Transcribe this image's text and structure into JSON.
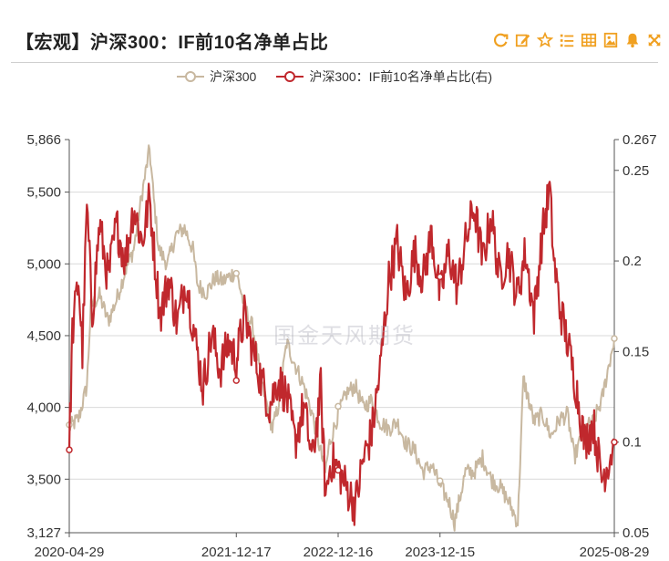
{
  "header": {
    "title": "【宏观】沪深300：IF前10名净单占比"
  },
  "toolbar": {
    "icons": [
      "refresh-icon",
      "edit-icon",
      "star-icon",
      "list-icon",
      "table-icon",
      "image-icon",
      "bell-icon",
      "expand-icon"
    ],
    "accent_color": "#f0a020"
  },
  "watermark": "国金天风期货",
  "chart_data": {
    "type": "line",
    "legend_position": "top-center",
    "grid": true,
    "x_start": "2020-04-29",
    "x_end": "2025-08-29",
    "x_ticks": [
      "2020-04-29",
      "2021-12-17",
      "2022-12-16",
      "2023-12-15",
      "2025-08-29"
    ],
    "y_left": {
      "min": 3127,
      "max": 5866,
      "ticks": [
        3127,
        3500,
        4000,
        4500,
        5000,
        5500,
        5866
      ],
      "tick_labels": [
        "3,127",
        "3,500",
        "4,000",
        "4,500",
        "5,000",
        "5,500",
        "5,866"
      ]
    },
    "y_right": {
      "min": 0.05,
      "max": 0.267,
      "ticks": [
        0.05,
        0.1,
        0.15,
        0.2,
        0.25,
        0.267
      ],
      "tick_labels": [
        "0.05",
        "0.1",
        "0.15",
        "0.2",
        "0.25",
        "0.267"
      ]
    },
    "series": [
      {
        "name": "沪深300",
        "axis": "left",
        "color": "#c8b8a0",
        "points": [
          [
            "2020-04-29",
            3860
          ],
          [
            "2020-06-01",
            3920
          ],
          [
            "2020-07-01",
            4150
          ],
          [
            "2020-07-15",
            4700
          ],
          [
            "2020-08-15",
            4780
          ],
          [
            "2020-09-15",
            4600
          ],
          [
            "2020-10-15",
            4750
          ],
          [
            "2020-11-15",
            4950
          ],
          [
            "2020-12-15",
            5100
          ],
          [
            "2021-01-15",
            5500
          ],
          [
            "2021-02-10",
            5800
          ],
          [
            "2021-02-25",
            5450
          ],
          [
            "2021-03-15",
            5100
          ],
          [
            "2021-04-15",
            5000
          ],
          [
            "2021-05-15",
            5200
          ],
          [
            "2021-06-15",
            5250
          ],
          [
            "2021-07-15",
            5100
          ],
          [
            "2021-08-01",
            4850
          ],
          [
            "2021-09-01",
            4800
          ],
          [
            "2021-10-01",
            4900
          ],
          [
            "2021-11-01",
            4880
          ],
          [
            "2021-12-17",
            4950
          ],
          [
            "2022-01-15",
            4700
          ],
          [
            "2022-02-15",
            4550
          ],
          [
            "2022-03-15",
            4200
          ],
          [
            "2022-04-25",
            3850
          ],
          [
            "2022-05-15",
            4000
          ],
          [
            "2022-06-15",
            4450
          ],
          [
            "2022-07-15",
            4300
          ],
          [
            "2022-08-15",
            4150
          ],
          [
            "2022-09-15",
            3950
          ],
          [
            "2022-10-31",
            3550
          ],
          [
            "2022-11-15",
            3750
          ],
          [
            "2022-12-16",
            3950
          ],
          [
            "2023-01-15",
            4100
          ],
          [
            "2023-02-15",
            4150
          ],
          [
            "2023-03-15",
            4000
          ],
          [
            "2023-04-15",
            4050
          ],
          [
            "2023-05-15",
            3900
          ],
          [
            "2023-06-15",
            3850
          ],
          [
            "2023-07-15",
            3900
          ],
          [
            "2023-08-15",
            3750
          ],
          [
            "2023-09-15",
            3700
          ],
          [
            "2023-10-15",
            3550
          ],
          [
            "2023-11-15",
            3600
          ],
          [
            "2023-12-15",
            3450
          ],
          [
            "2024-01-15",
            3350
          ],
          [
            "2024-02-05",
            3200
          ],
          [
            "2024-03-15",
            3550
          ],
          [
            "2024-04-15",
            3550
          ],
          [
            "2024-05-15",
            3650
          ],
          [
            "2024-06-15",
            3500
          ],
          [
            "2024-07-15",
            3450
          ],
          [
            "2024-08-15",
            3350
          ],
          [
            "2024-09-18",
            3200
          ],
          [
            "2024-10-08",
            4200
          ],
          [
            "2024-11-15",
            3900
          ],
          [
            "2024-12-15",
            3950
          ],
          [
            "2025-01-15",
            3800
          ],
          [
            "2025-02-15",
            3920
          ],
          [
            "2025-03-15",
            3950
          ],
          [
            "2025-04-08",
            3650
          ],
          [
            "2025-05-15",
            3850
          ],
          [
            "2025-06-15",
            3900
          ],
          [
            "2025-07-15",
            4050
          ],
          [
            "2025-08-29",
            4480
          ]
        ]
      },
      {
        "name": "沪深300：IF前10名净单占比(右)",
        "axis": "right",
        "color": "#c0282d",
        "points": [
          [
            "2020-04-29",
            0.095
          ],
          [
            "2020-05-10",
            0.16
          ],
          [
            "2020-06-01",
            0.19
          ],
          [
            "2020-06-15",
            0.15
          ],
          [
            "2020-07-01",
            0.23
          ],
          [
            "2020-07-20",
            0.17
          ],
          [
            "2020-08-15",
            0.22
          ],
          [
            "2020-09-15",
            0.19
          ],
          [
            "2020-10-15",
            0.22
          ],
          [
            "2020-11-15",
            0.2
          ],
          [
            "2020-12-15",
            0.23
          ],
          [
            "2021-01-15",
            0.21
          ],
          [
            "2021-02-10",
            0.235
          ],
          [
            "2021-03-01",
            0.2
          ],
          [
            "2021-03-20",
            0.17
          ],
          [
            "2021-04-20",
            0.19
          ],
          [
            "2021-05-20",
            0.165
          ],
          [
            "2021-06-20",
            0.19
          ],
          [
            "2021-07-20",
            0.16
          ],
          [
            "2021-08-20",
            0.13
          ],
          [
            "2021-09-20",
            0.16
          ],
          [
            "2021-10-20",
            0.14
          ],
          [
            "2021-11-20",
            0.155
          ],
          [
            "2021-12-17",
            0.145
          ],
          [
            "2022-01-15",
            0.17
          ],
          [
            "2022-02-15",
            0.15
          ],
          [
            "2022-03-15",
            0.135
          ],
          [
            "2022-04-15",
            0.12
          ],
          [
            "2022-05-15",
            0.135
          ],
          [
            "2022-06-15",
            0.125
          ],
          [
            "2022-07-15",
            0.1
          ],
          [
            "2022-08-15",
            0.12
          ],
          [
            "2022-09-15",
            0.09
          ],
          [
            "2022-10-15",
            0.13
          ],
          [
            "2022-11-01",
            0.07
          ],
          [
            "2022-11-20",
            0.09
          ],
          [
            "2022-12-16",
            0.085
          ],
          [
            "2023-01-15",
            0.075
          ],
          [
            "2023-02-15",
            0.065
          ],
          [
            "2023-03-15",
            0.09
          ],
          [
            "2023-04-15",
            0.105
          ],
          [
            "2023-05-15",
            0.14
          ],
          [
            "2023-06-15",
            0.19
          ],
          [
            "2023-07-15",
            0.21
          ],
          [
            "2023-08-15",
            0.18
          ],
          [
            "2023-09-15",
            0.205
          ],
          [
            "2023-10-15",
            0.19
          ],
          [
            "2023-11-15",
            0.215
          ],
          [
            "2023-12-15",
            0.18
          ],
          [
            "2024-01-15",
            0.205
          ],
          [
            "2024-02-15",
            0.185
          ],
          [
            "2024-03-15",
            0.21
          ],
          [
            "2024-04-15",
            0.23
          ],
          [
            "2024-05-15",
            0.2
          ],
          [
            "2024-06-15",
            0.225
          ],
          [
            "2024-07-15",
            0.19
          ],
          [
            "2024-08-15",
            0.205
          ],
          [
            "2024-09-15",
            0.18
          ],
          [
            "2024-10-15",
            0.205
          ],
          [
            "2024-11-15",
            0.17
          ],
          [
            "2024-12-15",
            0.215
          ],
          [
            "2025-01-10",
            0.24
          ],
          [
            "2025-01-25",
            0.2
          ],
          [
            "2025-02-15",
            0.175
          ],
          [
            "2025-03-15",
            0.155
          ],
          [
            "2025-04-15",
            0.13
          ],
          [
            "2025-05-15",
            0.1
          ],
          [
            "2025-06-15",
            0.11
          ],
          [
            "2025-07-15",
            0.08
          ],
          [
            "2025-08-10",
            0.09
          ],
          [
            "2025-08-29",
            0.1
          ]
        ]
      }
    ]
  }
}
